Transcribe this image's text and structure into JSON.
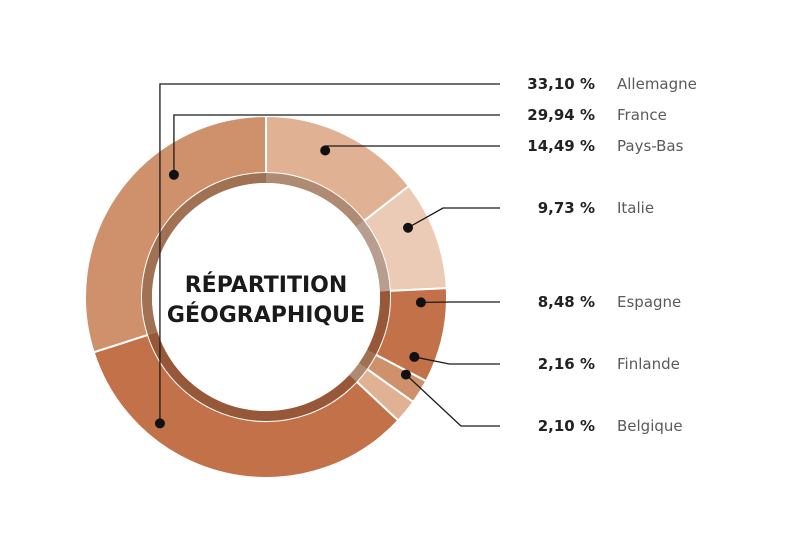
{
  "chart_data": {
    "type": "pie",
    "title_lines": [
      "RÉPARTITION",
      "GÉOGRAPHIQUE"
    ],
    "slices": [
      {
        "label": "Allemagne",
        "value": 33.1,
        "value_label": "33,10 %",
        "color": "#c27149"
      },
      {
        "label": "France",
        "value": 29.94,
        "value_label": "29,94 %",
        "color": "#cf916c"
      },
      {
        "label": "Pays-Bas",
        "value": 14.49,
        "value_label": "14,49 %",
        "color": "#e0b293"
      },
      {
        "label": "Italie",
        "value": 9.73,
        "value_label": "9,73 %",
        "color": "#ebcbb6"
      },
      {
        "label": "Espagne",
        "value": 8.48,
        "value_label": "8,48 %",
        "color": "#c27149"
      },
      {
        "label": "Finlande",
        "value": 2.16,
        "value_label": "2,16 %",
        "color": "#cf916c"
      },
      {
        "label": "Belgique",
        "value": 2.1,
        "value_label": "2,10 %",
        "color": "#e0b293"
      }
    ],
    "legend_position": "right"
  }
}
